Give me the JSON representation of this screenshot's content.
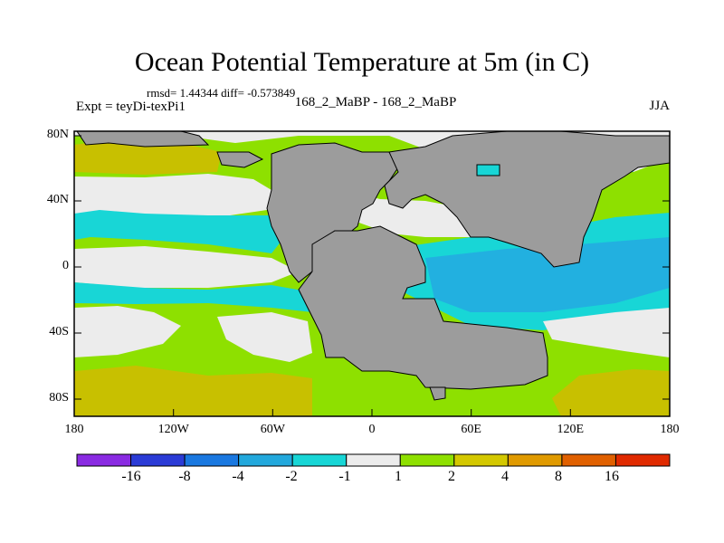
{
  "title": "Ocean Potential Temperature at 5m (in C)",
  "stats_text": "rmsd= 1.44344 diff= -0.573849",
  "experiment_text": "Expt = teyDi-texPi1",
  "subtitle": "168_2_MaBP - 168_2_MaBP",
  "season": "JJA",
  "lat_ticks": [
    "80N",
    "40N",
    "0",
    "40S",
    "80S"
  ],
  "lon_ticks": [
    "180",
    "120W",
    "60W",
    "0",
    "60E",
    "120E",
    "180"
  ],
  "colorbar": {
    "labels": [
      "-16",
      "-8",
      "-4",
      "-2",
      "-1",
      "1",
      "2",
      "4",
      "8",
      "16"
    ],
    "colors": [
      "#8a2be2",
      "#2b3bd6",
      "#1a78e0",
      "#22a8dc",
      "#18d6d6",
      "#ececec",
      "#8ee000",
      "#d4c800",
      "#e09a00",
      "#e06000",
      "#e02a00"
    ]
  },
  "map_colors": {
    "land": "#9c9c9c",
    "pos2": "#8ee000",
    "pos4": "#c8c000",
    "neg1": "#18d6d6",
    "neg2": "#22b0e0",
    "neutral": "#ececec"
  }
}
